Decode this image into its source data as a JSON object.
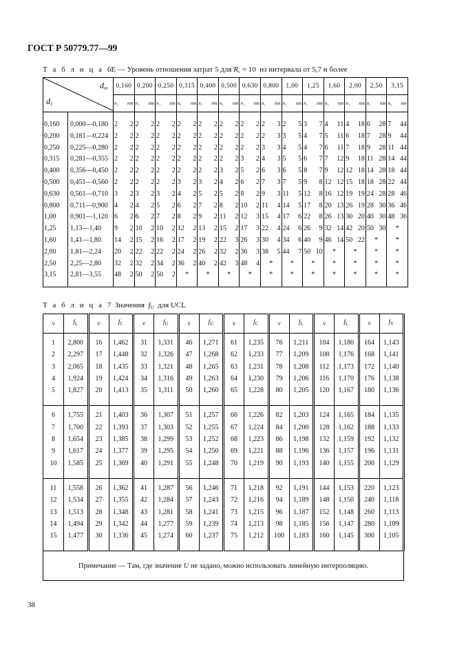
{
  "header": "ГОСТ Р 50779.77—99",
  "table6e": {
    "caption_prefix": "Т а б л и ц а",
    "caption_number": "6Е",
    "caption_text": "— Уровень отношения затрат 5 для",
    "caption_var": "R",
    "caption_var_sub": "c",
    "caption_eq": "= 10",
    "caption_tail": "из интервала от 5,7 и более",
    "corner_top": "d",
    "corner_top_sub": "т",
    "corner_bottom": "d",
    "corner_bottom_sub": "1",
    "subheaders": [
      "n₁",
      "nт"
    ],
    "dt_values": [
      "0,160",
      "0,200",
      "0,250",
      "0,315",
      "0,400",
      "0,500",
      "0,630",
      "0,800",
      "1,00",
      "1,25",
      "1,60",
      "2,00",
      "2,50",
      "3,15"
    ],
    "rows": [
      {
        "d1": "0,160",
        "range": "0,000—0,180",
        "cells": [
          [
            2,
            2
          ],
          [
            2,
            2
          ],
          [
            2,
            2
          ],
          [
            2,
            2
          ],
          [
            2,
            2
          ],
          [
            2,
            2
          ],
          [
            2,
            2
          ],
          [
            2,
            3
          ],
          [
            2,
            5
          ],
          [
            3,
            7
          ],
          [
            4,
            11
          ],
          [
            4,
            18
          ],
          [
            6,
            28
          ],
          [
            7,
            44
          ]
        ]
      },
      {
        "d1": "0,200",
        "range": "0,181—0,224",
        "cells": [
          [
            2,
            2
          ],
          [
            2,
            2
          ],
          [
            2,
            2
          ],
          [
            2,
            2
          ],
          [
            2,
            2
          ],
          [
            2,
            2
          ],
          [
            2,
            2
          ],
          [
            2,
            3
          ],
          [
            3,
            5
          ],
          [
            4,
            7
          ],
          [
            5,
            11
          ],
          [
            6,
            18
          ],
          [
            7,
            28
          ],
          [
            9,
            44
          ]
        ]
      },
      {
        "d1": "0,250",
        "range": "0,225—0,280",
        "cells": [
          [
            2,
            2
          ],
          [
            2,
            2
          ],
          [
            2,
            2
          ],
          [
            2,
            2
          ],
          [
            2,
            2
          ],
          [
            2,
            2
          ],
          [
            2,
            2
          ],
          [
            3,
            3
          ],
          [
            4,
            5
          ],
          [
            4,
            7
          ],
          [
            6,
            11
          ],
          [
            7,
            18
          ],
          [
            9,
            28
          ],
          [
            11,
            44
          ]
        ]
      },
      {
        "d1": "0,315",
        "range": "0,281—0,355",
        "cells": [
          [
            2,
            2
          ],
          [
            2,
            2
          ],
          [
            2,
            2
          ],
          [
            2,
            2
          ],
          [
            2,
            2
          ],
          [
            2,
            2
          ],
          [
            3,
            2
          ],
          [
            4,
            3
          ],
          [
            5,
            5
          ],
          [
            6,
            7
          ],
          [
            7,
            12
          ],
          [
            9,
            18
          ],
          [
            11,
            28
          ],
          [
            14,
            44
          ]
        ]
      },
      {
        "d1": "0,400",
        "range": "0,356—0,450",
        "cells": [
          [
            2,
            2
          ],
          [
            2,
            2
          ],
          [
            2,
            2
          ],
          [
            2,
            2
          ],
          [
            2,
            2
          ],
          [
            3,
            2
          ],
          [
            5,
            2
          ],
          [
            6,
            3
          ],
          [
            6,
            5
          ],
          [
            8,
            7
          ],
          [
            9,
            12
          ],
          [
            12,
            18
          ],
          [
            14,
            28
          ],
          [
            18,
            44
          ]
        ]
      },
      {
        "d1": "0,500",
        "range": "0,451—0,560",
        "cells": [
          [
            2,
            2
          ],
          [
            2,
            2
          ],
          [
            2,
            2
          ],
          [
            3,
            2
          ],
          [
            3,
            2
          ],
          [
            4,
            2
          ],
          [
            6,
            2
          ],
          [
            7,
            3
          ],
          [
            7,
            5
          ],
          [
            9,
            8
          ],
          [
            12,
            12
          ],
          [
            15,
            18
          ],
          [
            18,
            28
          ],
          [
            22,
            44
          ]
        ]
      },
      {
        "d1": "0,630",
        "range": "0,561—0,710",
        "cells": [
          [
            3,
            2
          ],
          [
            3,
            2
          ],
          [
            3,
            2
          ],
          [
            4,
            2
          ],
          [
            5,
            2
          ],
          [
            5,
            2
          ],
          [
            8,
            2
          ],
          [
            9,
            3
          ],
          [
            11,
            5
          ],
          [
            12,
            8
          ],
          [
            16,
            12
          ],
          [
            19,
            19
          ],
          [
            24,
            28
          ],
          [
            28,
            46
          ]
        ]
      },
      {
        "d1": "0,800",
        "range": "0,711—0,900",
        "cells": [
          [
            4,
            2
          ],
          [
            4,
            2
          ],
          [
            5,
            2
          ],
          [
            6,
            2
          ],
          [
            7,
            2
          ],
          [
            8,
            2
          ],
          [
            10,
            2
          ],
          [
            11,
            4
          ],
          [
            14,
            5
          ],
          [
            17,
            8
          ],
          [
            20,
            13
          ],
          [
            26,
            19
          ],
          [
            28,
            30
          ],
          [
            36,
            46
          ]
        ]
      },
      {
        "d1": "1,00",
        "range": "0,901—1,120",
        "cells": [
          [
            6,
            2
          ],
          [
            6,
            2
          ],
          [
            7,
            2
          ],
          [
            8,
            2
          ],
          [
            9,
            2
          ],
          [
            11,
            2
          ],
          [
            12,
            3
          ],
          [
            15,
            4
          ],
          [
            17,
            6
          ],
          [
            22,
            8
          ],
          [
            26,
            13
          ],
          [
            30,
            20
          ],
          [
            40,
            30
          ],
          [
            48,
            36
          ]
        ]
      },
      {
        "d1": "1,25",
        "range": "1,13—1,40",
        "cells": [
          [
            9,
            2
          ],
          [
            10,
            2
          ],
          [
            10,
            2
          ],
          [
            12,
            2
          ],
          [
            13,
            2
          ],
          [
            15,
            2
          ],
          [
            17,
            3
          ],
          [
            22,
            4
          ],
          [
            24,
            6
          ],
          [
            26,
            9
          ],
          [
            32,
            14
          ],
          [
            42,
            20
          ],
          [
            50,
            30
          ],
          "*"
        ]
      },
      {
        "d1": "1,60",
        "range": "1,41—1,80",
        "cells": [
          [
            14,
            2
          ],
          [
            15,
            2
          ],
          [
            16,
            2
          ],
          [
            17,
            2
          ],
          [
            19,
            2
          ],
          [
            22,
            3
          ],
          [
            26,
            3
          ],
          [
            30,
            4
          ],
          [
            34,
            6
          ],
          [
            40,
            9
          ],
          [
            46,
            14
          ],
          [
            50,
            22
          ],
          "*",
          "*"
        ]
      },
      {
        "d1": "2,00",
        "range": "1,81—2,24",
        "cells": [
          [
            20,
            2
          ],
          [
            22,
            2
          ],
          [
            22,
            2
          ],
          [
            24,
            2
          ],
          [
            26,
            2
          ],
          [
            32,
            2
          ],
          [
            36,
            3
          ],
          [
            38,
            5
          ],
          [
            44,
            7
          ],
          [
            50,
            10
          ],
          "*",
          "*",
          "*",
          "*"
        ]
      },
      {
        "d1": "2,50",
        "range": "2,25—2,80",
        "cells": [
          [
            32,
            2
          ],
          [
            32,
            2
          ],
          [
            34,
            2
          ],
          [
            36,
            2
          ],
          [
            40,
            2
          ],
          [
            42,
            3
          ],
          [
            48,
            4
          ],
          "*",
          "*",
          "*",
          "*",
          "*",
          "*",
          "*"
        ]
      },
      {
        "d1": "3,15",
        "range": "2,81—3,55",
        "cells": [
          [
            48,
            2
          ],
          [
            50,
            2
          ],
          [
            50,
            2
          ],
          "*",
          "*",
          "*",
          "*",
          "*",
          "*",
          "*",
          "*",
          "*",
          "*",
          "*"
        ]
      }
    ]
  },
  "table7": {
    "caption_prefix": "Т а б л и ц а",
    "caption_number": "7",
    "caption_text": "Значения",
    "caption_var": "f",
    "caption_var_sub": "U",
    "caption_tail": "для UCL",
    "headers": [
      {
        "nu": "ν",
        "f": "f",
        "sub": "L"
      },
      {
        "nu": "ν",
        "f": "f",
        "sub": "C"
      },
      {
        "nu": "ν",
        "f": "f",
        "sub": "U"
      },
      {
        "nu": "ν",
        "f": "f",
        "sub": "U"
      },
      {
        "nu": "ν",
        "f": "f",
        "sub": "C"
      },
      {
        "nu": "ν",
        "f": "f",
        "sub": "L"
      },
      {
        "nu": "ν",
        "f": "f",
        "sub": "L"
      },
      {
        "nu": "ν",
        "f": "f",
        "sub": "V"
      }
    ],
    "groups": [
      [
        [
          "1",
          "2,800",
          "16",
          "1,462",
          "31",
          "1,331",
          "46",
          "1,271",
          "61",
          "1,235",
          "76",
          "1,211",
          "104",
          "1,180",
          "164",
          "1,143"
        ],
        [
          "2",
          "2,297",
          "17",
          "1,448",
          "32",
          "1,326",
          "47",
          "1,268",
          "62",
          "1,233",
          "77",
          "1,209",
          "108",
          "1,176",
          "168",
          "1,141"
        ],
        [
          "3",
          "2,065",
          "18",
          "1,435",
          "33",
          "1,321",
          "48",
          "1,265",
          "63",
          "1,231",
          "78",
          "1,208",
          "112",
          "1,173",
          "172",
          "1,140"
        ],
        [
          "4",
          "1,924",
          "19",
          "1,424",
          "34",
          "1,316",
          "49",
          "1,263",
          "64",
          "1,230",
          "79",
          "1,206",
          "116",
          "1,170",
          "176",
          "1,138"
        ],
        [
          "5",
          "1,827",
          "20",
          "1,413",
          "35",
          "1,311",
          "50",
          "1,260",
          "65",
          "1,228",
          "80",
          "1,205",
          "120",
          "1,167",
          "180",
          "1,136"
        ]
      ],
      [
        [
          "6",
          "1,755",
          "21",
          "1,403",
          "36",
          "1,307",
          "51",
          "1,257",
          "66",
          "1,226",
          "82",
          "1,203",
          "124",
          "1,165",
          "184",
          "1,135"
        ],
        [
          "7",
          "1,700",
          "22",
          "1,393",
          "37",
          "1,303",
          "52",
          "1,255",
          "67",
          "1,224",
          "84",
          "1,200",
          "128",
          "1,162",
          "188",
          "1,133"
        ],
        [
          "8",
          "1,654",
          "23",
          "1,385",
          "38",
          "1,299",
          "53",
          "1,252",
          "68",
          "1,223",
          "86",
          "1,198",
          "132",
          "1,159",
          "192",
          "1,132"
        ],
        [
          "9",
          "1,617",
          "24",
          "1,377",
          "39",
          "1,295",
          "54",
          "1,250",
          "69",
          "1,221",
          "88",
          "1,196",
          "136",
          "1,157",
          "196",
          "1,131"
        ],
        [
          "10",
          "1,585",
          "25",
          "1,369",
          "40",
          "1,291",
          "55",
          "1,248",
          "70",
          "1,219",
          "90",
          "1,193",
          "140",
          "1,155",
          "200",
          "1,129"
        ]
      ],
      [
        [
          "11",
          "1,558",
          "26",
          "1,362",
          "41",
          "1,287",
          "56",
          "1,246",
          "71",
          "1,218",
          "92",
          "1,191",
          "144",
          "1,153",
          "220",
          "1,123"
        ],
        [
          "12",
          "1,534",
          "27",
          "1,355",
          "42",
          "1,284",
          "57",
          "1,243",
          "72",
          "1,216",
          "94",
          "1,189",
          "148",
          "1,150",
          "240",
          "1,118"
        ],
        [
          "13",
          "1,513",
          "28",
          "1,348",
          "43",
          "1,281",
          "58",
          "1,241",
          "73",
          "1,215",
          "96",
          "1,187",
          "152",
          "1,148",
          "260",
          "1,113"
        ],
        [
          "14",
          "1,494",
          "29",
          "1,342",
          "44",
          "1,277",
          "59",
          "1,239",
          "74",
          "1,213",
          "98",
          "1,185",
          "156",
          "1,147",
          "280",
          "1,109"
        ],
        [
          "15",
          "1,477",
          "30",
          "1,336",
          "45",
          "1,274",
          "60",
          "1,237",
          "75",
          "1,212",
          "100",
          "1,183",
          "160",
          "1,145",
          "300",
          "1,105"
        ]
      ]
    ],
    "note_prefix": "Примечание — Там, где значение",
    "note_var": "U",
    "note_tail": "не задано, можно использовать линейную интерполяцию."
  },
  "page_number": "38"
}
